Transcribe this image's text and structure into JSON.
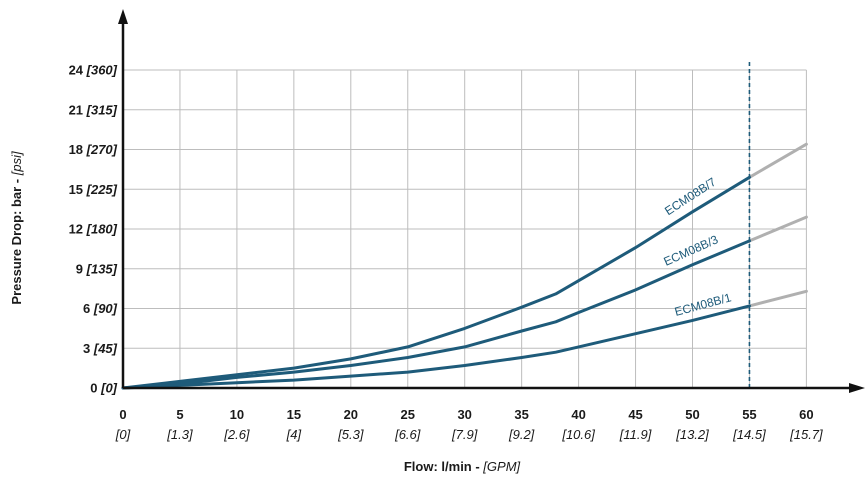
{
  "chart_data": {
    "type": "line",
    "xlabel": {
      "main": "Flow: l/min - ",
      "unit": "[GPM]"
    },
    "ylabel": {
      "main": "Pressure Drop: bar - ",
      "unit": "[psi]"
    },
    "xlim": [
      0,
      60
    ],
    "ylim": [
      0,
      24
    ],
    "grid": true,
    "x_ticks": [
      {
        "value": 0,
        "label": "0",
        "alt": "[0]"
      },
      {
        "value": 5,
        "label": "5",
        "alt": "[1.3]"
      },
      {
        "value": 10,
        "label": "10",
        "alt": "[2.6]"
      },
      {
        "value": 15,
        "label": "15",
        "alt": "[4]"
      },
      {
        "value": 20,
        "label": "20",
        "alt": "[5.3]"
      },
      {
        "value": 25,
        "label": "25",
        "alt": "[6.6]"
      },
      {
        "value": 30,
        "label": "30",
        "alt": "[7.9]"
      },
      {
        "value": 35,
        "label": "35",
        "alt": "[9.2]"
      },
      {
        "value": 40,
        "label": "40",
        "alt": "[10.6]"
      },
      {
        "value": 45,
        "label": "45",
        "alt": "[11.9]"
      },
      {
        "value": 50,
        "label": "50",
        "alt": "[13.2]"
      },
      {
        "value": 55,
        "label": "55",
        "alt": "[14.5]"
      },
      {
        "value": 60,
        "label": "60",
        "alt": "[15.7]"
      }
    ],
    "y_ticks": [
      {
        "value": 0,
        "label": "0",
        "alt": "[0]"
      },
      {
        "value": 3,
        "label": "3",
        "alt": "[45]"
      },
      {
        "value": 6,
        "label": "6",
        "alt": "[90]"
      },
      {
        "value": 9,
        "label": "9",
        "alt": "[135]"
      },
      {
        "value": 12,
        "label": "12",
        "alt": "[180]"
      },
      {
        "value": 15,
        "label": "15",
        "alt": "[225]"
      },
      {
        "value": 18,
        "label": "18",
        "alt": "[270]"
      },
      {
        "value": 21,
        "label": "21",
        "alt": "[315]"
      },
      {
        "value": 24,
        "label": "24",
        "alt": "[360]"
      }
    ],
    "limit_line": {
      "x": 55
    },
    "colors": {
      "series": "#1e5b7a",
      "extension": "#b0b0b0",
      "grid": "#bdbdbd",
      "axis": "#111111",
      "limit": "#1e5b7a"
    },
    "series": [
      {
        "name": "ECM08B/7",
        "points": [
          [
            0,
            0
          ],
          [
            5,
            0.5
          ],
          [
            10,
            1.0
          ],
          [
            15,
            1.5
          ],
          [
            20,
            2.2
          ],
          [
            25,
            3.1
          ],
          [
            30,
            4.5
          ],
          [
            35,
            6.1
          ],
          [
            38,
            7.1
          ],
          [
            40,
            8.1
          ],
          [
            45,
            10.6
          ],
          [
            50,
            13.3
          ],
          [
            55,
            15.9
          ]
        ],
        "extension": [
          [
            55,
            15.9
          ],
          [
            60,
            18.4
          ]
        ]
      },
      {
        "name": "ECM08B/3",
        "points": [
          [
            0,
            0
          ],
          [
            5,
            0.3
          ],
          [
            10,
            0.8
          ],
          [
            15,
            1.2
          ],
          [
            20,
            1.7
          ],
          [
            25,
            2.3
          ],
          [
            30,
            3.1
          ],
          [
            35,
            4.3
          ],
          [
            38,
            5.0
          ],
          [
            40,
            5.7
          ],
          [
            45,
            7.4
          ],
          [
            50,
            9.3
          ],
          [
            55,
            11.1
          ]
        ],
        "extension": [
          [
            55,
            11.1
          ],
          [
            60,
            12.9
          ]
        ]
      },
      {
        "name": "ECM08B/1",
        "points": [
          [
            0,
            0
          ],
          [
            5,
            0.2
          ],
          [
            10,
            0.4
          ],
          [
            15,
            0.6
          ],
          [
            20,
            0.9
          ],
          [
            25,
            1.2
          ],
          [
            30,
            1.7
          ],
          [
            35,
            2.3
          ],
          [
            38,
            2.7
          ],
          [
            40,
            3.1
          ],
          [
            45,
            4.1
          ],
          [
            50,
            5.1
          ],
          [
            55,
            6.2
          ]
        ],
        "extension": [
          [
            55,
            6.2
          ],
          [
            60,
            7.3
          ]
        ]
      }
    ]
  }
}
